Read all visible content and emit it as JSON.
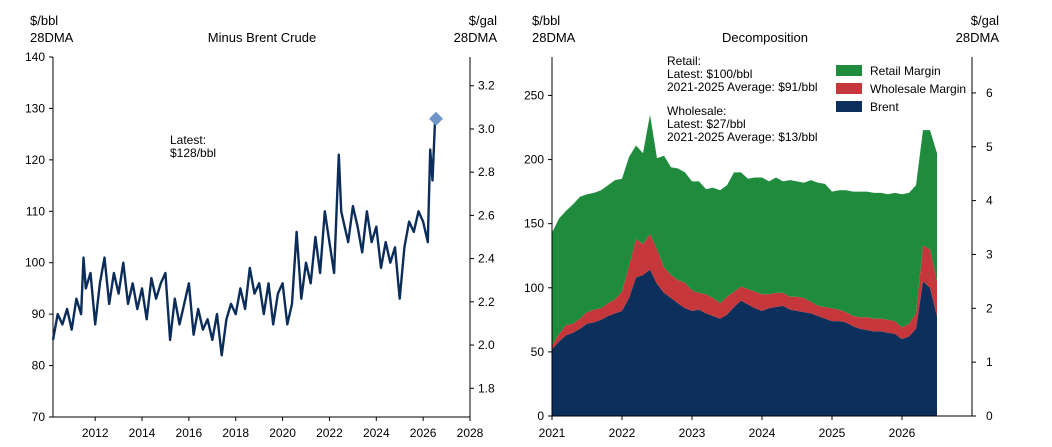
{
  "chart_data": [
    {
      "type": "line",
      "title": "Minus Brent Crude",
      "left_unit": [
        "$/bbl",
        "28DMA"
      ],
      "right_unit": [
        "$/gal",
        "28DMA"
      ],
      "x_ticks": [
        "2012",
        "2014",
        "2016",
        "2018",
        "2020",
        "2022",
        "2024",
        "2026",
        "2028"
      ],
      "xlim": [
        2010.2,
        2028
      ],
      "ylim": [
        70,
        140
      ],
      "y_ticks": [
        "70",
        "80",
        "90",
        "100",
        "110",
        "120",
        "130",
        "140"
      ],
      "y2lim": [
        1.667,
        3.333
      ],
      "y2_ticks": [
        "1.8",
        "2.0",
        "2.2",
        "2.4",
        "2.6",
        "2.8",
        "3.0",
        "3.2"
      ],
      "annotation": [
        "Latest:",
        "$128/bbl"
      ],
      "latest_point": {
        "x": 2026.55,
        "y": 128
      },
      "colors": {
        "line": "#0c2d5a",
        "marker": "#6f95c8"
      },
      "series": [
        {
          "x": [
            2010.2,
            2010.4,
            2010.6,
            2010.8,
            2011.0,
            2011.2,
            2011.4,
            2011.5,
            2011.6,
            2011.8,
            2012.0,
            2012.2,
            2012.4,
            2012.6,
            2012.8,
            2013.0,
            2013.2,
            2013.4,
            2013.6,
            2013.8,
            2014.0,
            2014.2,
            2014.4,
            2014.6,
            2014.8,
            2015.0,
            2015.2,
            2015.4,
            2015.6,
            2015.8,
            2016.0,
            2016.2,
            2016.4,
            2016.6,
            2016.8,
            2017.0,
            2017.2,
            2017.4,
            2017.6,
            2017.8,
            2018.0,
            2018.2,
            2018.4,
            2018.6,
            2018.8,
            2019.0,
            2019.2,
            2019.4,
            2019.6,
            2019.8,
            2020.0,
            2020.2,
            2020.4,
            2020.6,
            2020.8,
            2021.0,
            2021.2,
            2021.4,
            2021.6,
            2021.8,
            2022.0,
            2022.2,
            2022.4,
            2022.5,
            2022.6,
            2022.8,
            2023.0,
            2023.2,
            2023.4,
            2023.6,
            2023.8,
            2024.0,
            2024.2,
            2024.4,
            2024.6,
            2024.8,
            2025.0,
            2025.2,
            2025.4,
            2025.6,
            2025.8,
            2026.0,
            2026.2,
            2026.3,
            2026.4,
            2026.5,
            2026.55
          ],
          "y": [
            85,
            90,
            88,
            91,
            87,
            93,
            90,
            101,
            95,
            98,
            88,
            96,
            101,
            92,
            98,
            94,
            100,
            92,
            96,
            91,
            95,
            89,
            97,
            93,
            96,
            98,
            85,
            93,
            88,
            92,
            96,
            86,
            91,
            87,
            89,
            85,
            90,
            82,
            89,
            92,
            90,
            95,
            91,
            99,
            94,
            96,
            90,
            96,
            88,
            94,
            96,
            88,
            92,
            106,
            93,
            100,
            96,
            105,
            98,
            110,
            104,
            98,
            121,
            110,
            108,
            104,
            111,
            107,
            102,
            110,
            104,
            107,
            99,
            104,
            100,
            103,
            93,
            103,
            108,
            106,
            110,
            108,
            104,
            122,
            116,
            127,
            128
          ]
        }
      ]
    },
    {
      "type": "area",
      "title": "Decomposition",
      "left_unit": [
        "$/bbl",
        "28DMA"
      ],
      "right_unit": [
        "$/gal",
        "28DMA"
      ],
      "x_ticks": [
        "2021",
        "2022",
        "2023",
        "2024",
        "2025",
        "2026"
      ],
      "xlim": [
        2021,
        2027
      ],
      "ylim": [
        0,
        280
      ],
      "y_ticks": [
        "0",
        "50",
        "100",
        "150",
        "200",
        "250"
      ],
      "y2lim": [
        0,
        6.667
      ],
      "y2_ticks": [
        "0",
        "1",
        "2",
        "3",
        "4",
        "5",
        "6"
      ],
      "legend": [
        "Retail Margin",
        "Wholesale Margin",
        "Brent"
      ],
      "legend_position": "top-right",
      "annotations": [
        "Retail:",
        "Latest: $100/bbl",
        "2021-2025 Average: $91/bbl",
        "Wholesale:",
        "Latest: $27/bbl",
        "2021-2025 Average: $13/bbl"
      ],
      "colors": {
        "Retail Margin": "#1e8b3d",
        "Wholesale Margin": "#c5373a",
        "Brent": "#0d2f5c"
      },
      "x": [
        2021.0,
        2021.1,
        2021.2,
        2021.3,
        2021.4,
        2021.5,
        2021.6,
        2021.7,
        2021.8,
        2021.9,
        2022.0,
        2022.1,
        2022.2,
        2022.3,
        2022.4,
        2022.5,
        2022.6,
        2022.7,
        2022.8,
        2022.9,
        2023.0,
        2023.1,
        2023.2,
        2023.3,
        2023.4,
        2023.5,
        2023.6,
        2023.7,
        2023.8,
        2023.9,
        2024.0,
        2024.1,
        2024.2,
        2024.3,
        2024.4,
        2024.5,
        2024.6,
        2024.7,
        2024.8,
        2024.9,
        2025.0,
        2025.1,
        2025.2,
        2025.3,
        2025.4,
        2025.5,
        2025.6,
        2025.7,
        2025.8,
        2025.9,
        2026.0,
        2026.1,
        2026.2,
        2026.3,
        2026.4,
        2026.5
      ],
      "series": [
        {
          "name": "Brent",
          "values": [
            52,
            58,
            63,
            65,
            68,
            72,
            73,
            75,
            78,
            80,
            82,
            92,
            108,
            110,
            114,
            103,
            96,
            92,
            88,
            84,
            82,
            83,
            80,
            78,
            76,
            79,
            85,
            90,
            87,
            84,
            82,
            84,
            85,
            86,
            83,
            82,
            81,
            80,
            78,
            76,
            74,
            74,
            73,
            70,
            68,
            67,
            66,
            66,
            65,
            64,
            60,
            62,
            68,
            105,
            100,
            78
          ]
        },
        {
          "name": "Wholesale Margin",
          "values": [
            3,
            6,
            8,
            7,
            8,
            9,
            10,
            9,
            10,
            11,
            15,
            25,
            30,
            24,
            28,
            27,
            20,
            18,
            18,
            20,
            16,
            13,
            15,
            14,
            12,
            14,
            12,
            11,
            12,
            13,
            13,
            11,
            11,
            10,
            10,
            11,
            11,
            9,
            8,
            9,
            10,
            9,
            8,
            8,
            9,
            10,
            10,
            10,
            10,
            10,
            9,
            10,
            12,
            28,
            30,
            27
          ]
        },
        {
          "name": "Retail Margin",
          "values": [
            88,
            90,
            89,
            93,
            95,
            92,
            91,
            92,
            92,
            93,
            88,
            85,
            73,
            71,
            93,
            71,
            87,
            84,
            87,
            86,
            85,
            87,
            82,
            86,
            88,
            87,
            93,
            89,
            86,
            89,
            91,
            88,
            90,
            87,
            91,
            90,
            90,
            95,
            96,
            96,
            91,
            93,
            95,
            97,
            98,
            98,
            98,
            98,
            98,
            100,
            104,
            102,
            100,
            90,
            93,
            100
          ]
        }
      ]
    }
  ]
}
